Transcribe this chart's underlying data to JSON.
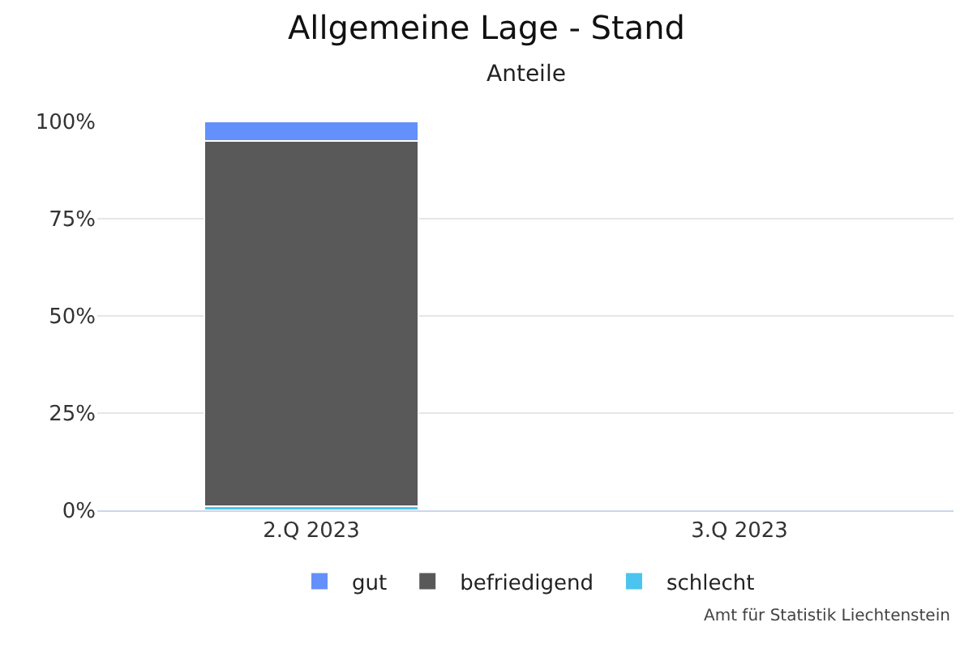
{
  "chart_data": {
    "type": "bar",
    "title": "Allgemeine Lage - Stand",
    "subtitle": "Anteile",
    "categories": [
      "2.Q 2023",
      "3.Q 2023"
    ],
    "stacked": true,
    "series": [
      {
        "name": "schlecht",
        "color": "#4bc4ef",
        "values": [
          1,
          null
        ]
      },
      {
        "name": "befriedigend",
        "color": "#595959",
        "values": [
          94,
          null
        ]
      },
      {
        "name": "gut",
        "color": "#6390fb",
        "values": [
          5,
          null
        ]
      }
    ],
    "ylim": [
      0,
      100
    ],
    "yticks": [
      {
        "value": 0,
        "label": "0%"
      },
      {
        "value": 25,
        "label": "25%"
      },
      {
        "value": 50,
        "label": "50%"
      },
      {
        "value": 75,
        "label": "75%"
      },
      {
        "value": 100,
        "label": "100%"
      }
    ],
    "grid": "y",
    "legend": "bottom",
    "annotations": [
      "Amt für Statistik Liechtenstein"
    ]
  }
}
